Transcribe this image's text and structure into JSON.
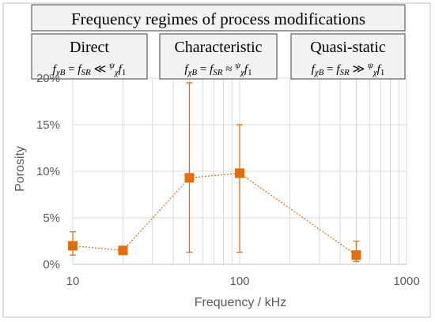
{
  "chart_data": {
    "type": "scatter",
    "title": "Frequency regimes of process modifications",
    "regimes": [
      {
        "name": "Direct",
        "formula": "fχB = fSR ≪ ψχf1",
        "lhs": "f",
        "lhs_sub": "χB",
        "mid": "f",
        "mid_sub": "SR",
        "rel": "≪",
        "rhs_sup": "ψ",
        "rhs_sub": "χ",
        "rhs": "f",
        "rhs_end_sub": "1"
      },
      {
        "name": "Characteristic",
        "formula": "fχB = fSR ≈ ψχf1",
        "lhs": "f",
        "lhs_sub": "χB",
        "mid": "f",
        "mid_sub": "SR",
        "rel": "≈",
        "rhs_sup": "ψ",
        "rhs_sub": "χ",
        "rhs": "f",
        "rhs_end_sub": "1"
      },
      {
        "name": "Quasi-static",
        "formula": "fχB = fSR ≫ ψχf1",
        "lhs": "f",
        "lhs_sub": "χB",
        "mid": "f",
        "mid_sub": "SR",
        "rel": "≫",
        "rhs_sup": "ψ",
        "rhs_sub": "χ",
        "rhs": "f",
        "rhs_end_sub": "1"
      }
    ],
    "xlabel": "Frequency / kHz",
    "ylabel": "Porosity",
    "x_scale": "log",
    "xlim": [
      10,
      1000
    ],
    "ylim": [
      0,
      0.2
    ],
    "x_ticks": [
      10,
      100,
      1000
    ],
    "x_tick_labels": [
      "10",
      "100",
      "1000"
    ],
    "y_ticks": [
      0,
      0.05,
      0.1,
      0.15,
      0.2
    ],
    "y_tick_labels": [
      "0%",
      "5%",
      "10%",
      "15%",
      "20%"
    ],
    "grid": true,
    "color": "#E46C0A",
    "points": [
      {
        "x": 10,
        "y": 0.02,
        "err_low": 0.01,
        "err_high": 0.035
      },
      {
        "x": 20,
        "y": 0.015,
        "err_low": 0.015,
        "err_high": 0.015
      },
      {
        "x": 50,
        "y": 0.093,
        "err_low": 0.013,
        "err_high": 0.195
      },
      {
        "x": 100,
        "y": 0.098,
        "err_low": 0.013,
        "err_high": 0.15
      },
      {
        "x": 500,
        "y": 0.01,
        "err_low": 0.003,
        "err_high": 0.025
      }
    ]
  }
}
